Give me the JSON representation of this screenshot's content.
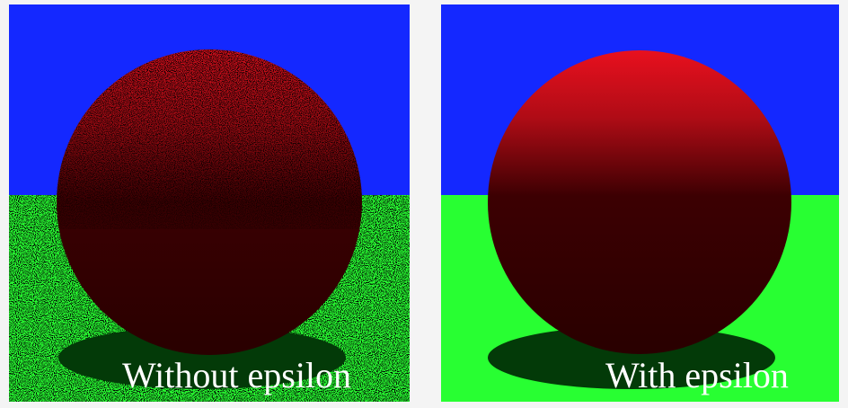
{
  "captions": {
    "left": "Without epsilon",
    "right": "With epsilon"
  },
  "colors": {
    "sky": "#1428ff",
    "ground": "#28ff32",
    "sphere_lit": "#e00f1c",
    "sphere_dark": "#2a0000",
    "shadow": "#033a08",
    "caption": "#ffffff",
    "background": "#f4f4f4"
  }
}
